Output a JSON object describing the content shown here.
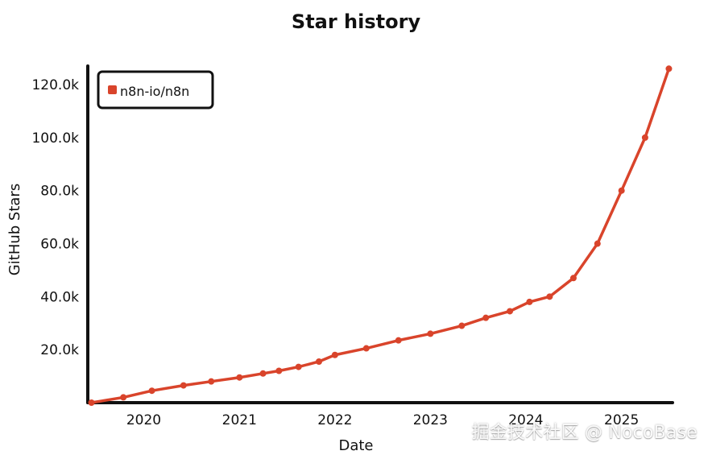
{
  "chart_data": {
    "type": "line",
    "title": "Star history",
    "xlabel": "Date",
    "ylabel": "GitHub Stars",
    "x_ticks": [
      "2020",
      "2021",
      "2022",
      "2023",
      "2024",
      "2025"
    ],
    "y_ticks": [
      "20.0k",
      "40.0k",
      "60.0k",
      "80.0k",
      "100.0k",
      "120.0k"
    ],
    "xlim": [
      "2019-06-01",
      "2025-07-15"
    ],
    "ylim": [
      0,
      127000
    ],
    "legend": {
      "placement": "top-left",
      "entries": [
        "n8n-io/n8n"
      ]
    },
    "series": [
      {
        "name": "n8n-io/n8n",
        "color": "#d9442b",
        "points": [
          {
            "date": "2019-06-15",
            "value": 0
          },
          {
            "date": "2019-10-15",
            "value": 2000
          },
          {
            "date": "2020-02-01",
            "value": 4500
          },
          {
            "date": "2020-06-01",
            "value": 6500
          },
          {
            "date": "2020-09-15",
            "value": 8000
          },
          {
            "date": "2021-01-01",
            "value": 9500
          },
          {
            "date": "2021-04-01",
            "value": 11000
          },
          {
            "date": "2021-06-01",
            "value": 12000
          },
          {
            "date": "2021-08-15",
            "value": 13500
          },
          {
            "date": "2021-11-01",
            "value": 15500
          },
          {
            "date": "2022-01-01",
            "value": 18000
          },
          {
            "date": "2022-05-01",
            "value": 20500
          },
          {
            "date": "2022-09-01",
            "value": 23500
          },
          {
            "date": "2023-01-01",
            "value": 26000
          },
          {
            "date": "2023-05-01",
            "value": 29000
          },
          {
            "date": "2023-08-01",
            "value": 32000
          },
          {
            "date": "2023-11-01",
            "value": 34500
          },
          {
            "date": "2024-01-15",
            "value": 38000
          },
          {
            "date": "2024-04-01",
            "value": 40000
          },
          {
            "date": "2024-07-01",
            "value": 47000
          },
          {
            "date": "2024-10-01",
            "value": 60000
          },
          {
            "date": "2025-01-01",
            "value": 80000
          },
          {
            "date": "2025-04-01",
            "value": 100000
          },
          {
            "date": "2025-07-01",
            "value": 126000
          }
        ]
      }
    ],
    "grid": false
  },
  "watermark": "掘金技术社区 @ NocoBase"
}
